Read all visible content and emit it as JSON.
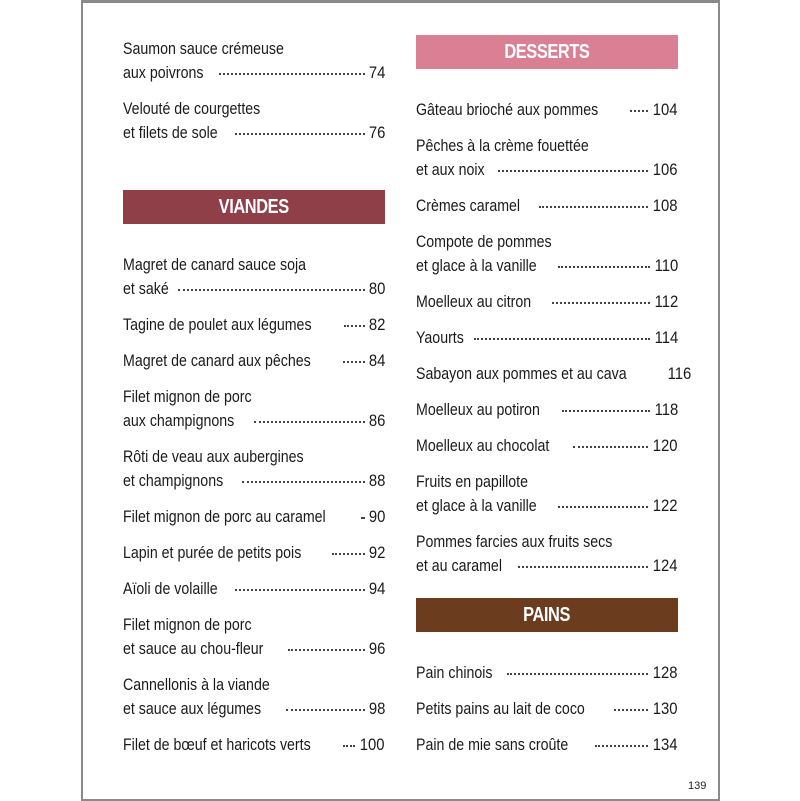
{
  "colors": {
    "viandes": "#8f3f48",
    "desserts": "#d98095",
    "pains": "#6b3c1e",
    "frame": "#8a8a8a"
  },
  "left": {
    "intro_entries": [
      {
        "lines": [
          "Saumon sauce crémeuse",
          "aux poivrons"
        ],
        "page": "74"
      },
      {
        "lines": [
          "Velouté de courgettes",
          "et filets de sole"
        ],
        "page": "76"
      }
    ],
    "sections": [
      {
        "title": "VIANDES",
        "color_key": "viandes",
        "entries": [
          {
            "lines": [
              "Magret de canard sauce soja",
              "et saké"
            ],
            "page": "80"
          },
          {
            "lines": [
              "Tagine de poulet aux légumes"
            ],
            "page": "82"
          },
          {
            "lines": [
              "Magret de canard aux pêches"
            ],
            "page": "84"
          },
          {
            "lines": [
              "Filet mignon de porc",
              "aux champignons"
            ],
            "page": "86"
          },
          {
            "lines": [
              "Rôti de veau aux aubergines",
              "et champignons"
            ],
            "page": "88"
          },
          {
            "lines": [
              "Filet mignon de porc au caramel"
            ],
            "page": "90"
          },
          {
            "lines": [
              "Lapin et purée de petits pois"
            ],
            "page": "92"
          },
          {
            "lines": [
              "Aïoli de volaille"
            ],
            "page": "94"
          },
          {
            "lines": [
              "Filet mignon de porc",
              "et sauce au chou-fleur"
            ],
            "page": "96"
          },
          {
            "lines": [
              "Cannellonis à la viande",
              "et sauce aux légumes"
            ],
            "page": "98"
          },
          {
            "lines": [
              "Filet de bœuf et haricots verts"
            ],
            "page": "100"
          }
        ]
      }
    ]
  },
  "right": {
    "sections": [
      {
        "title": "DESSERTS",
        "color_key": "desserts",
        "entries": [
          {
            "lines": [
              "Gâteau brioché aux pommes"
            ],
            "page": "104"
          },
          {
            "lines": [
              "Pêches à la crème fouettée",
              "et aux noix"
            ],
            "page": "106"
          },
          {
            "lines": [
              "Crèmes caramel"
            ],
            "page": "108"
          },
          {
            "lines": [
              "Compote de pommes",
              "et glace à la vanille"
            ],
            "page": "110"
          },
          {
            "lines": [
              "Moelleux au citron"
            ],
            "page": "112"
          },
          {
            "lines": [
              "Yaourts"
            ],
            "page": "114"
          },
          {
            "lines": [
              "Sabayon aux pommes et au cava"
            ],
            "page": "116"
          },
          {
            "lines": [
              "Moelleux au potiron"
            ],
            "page": "118"
          },
          {
            "lines": [
              "Moelleux au chocolat"
            ],
            "page": "120"
          },
          {
            "lines": [
              "Fruits en papillote",
              "et glace à la vanille"
            ],
            "page": "122"
          },
          {
            "lines": [
              "Pommes farcies aux fruits secs",
              "et au caramel"
            ],
            "page": "124"
          }
        ]
      },
      {
        "title": "PAINS",
        "color_key": "pains",
        "entries": [
          {
            "lines": [
              "Pain chinois"
            ],
            "page": "128"
          },
          {
            "lines": [
              "Petits pains au lait de coco"
            ],
            "page": "130"
          },
          {
            "lines": [
              "Pain de mie sans croûte"
            ],
            "page": "134"
          }
        ]
      }
    ]
  },
  "page_number": "139"
}
